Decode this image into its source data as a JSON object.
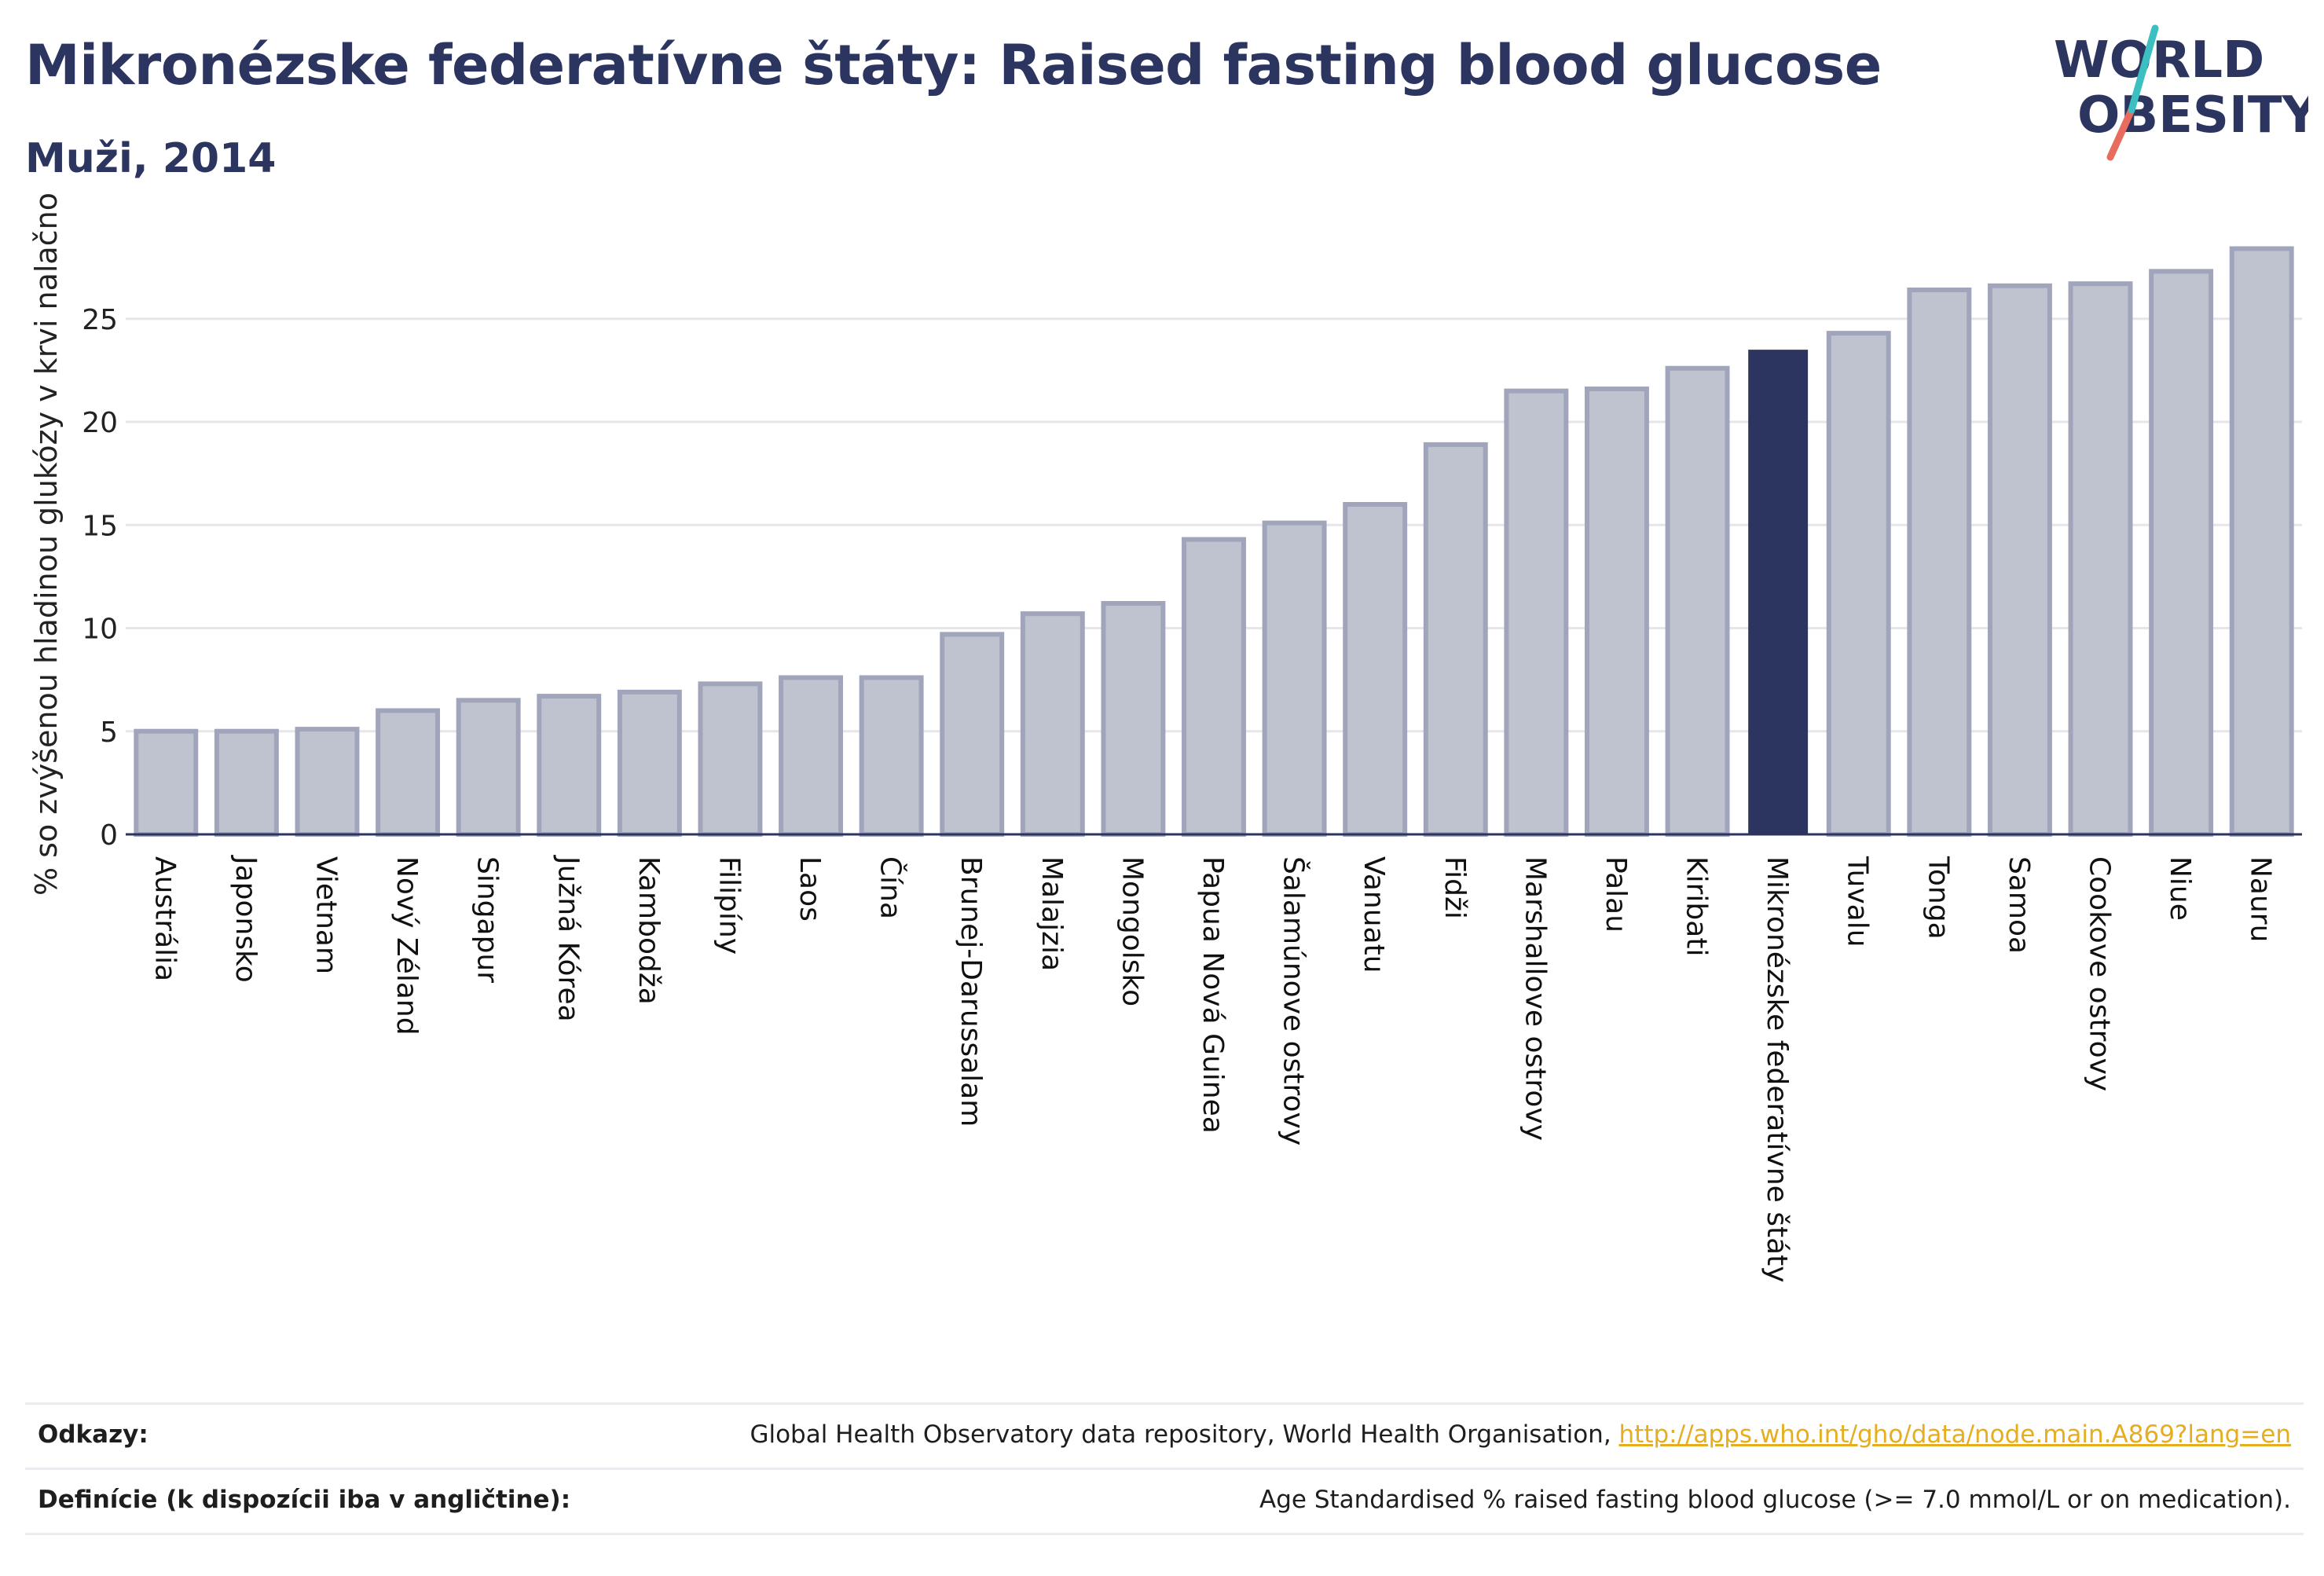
{
  "header": {
    "title": "Mikronézske federatívne štáty: Raised fasting blood glucose",
    "subtitle": "Muži, 2014"
  },
  "logo": {
    "line1": "WORLD",
    "line2": "OBESITY"
  },
  "colors": {
    "bar": "#bfc2cf",
    "bar_stroke": "#a0a5bb",
    "highlight": "#2b3560",
    "grid": "#e6e6ea",
    "title": "#2b3560",
    "link": "#e6ad1e"
  },
  "chart_data": {
    "type": "bar",
    "title": "Mikronézske federatívne štáty: Raised fasting blood glucose",
    "subtitle": "Muži, 2014",
    "xlabel": "",
    "ylabel": "% so zvýšenou hladinou glukózy v krvi nalačno",
    "ylim": [
      0,
      29
    ],
    "yticks": [
      0,
      5,
      10,
      15,
      20,
      25
    ],
    "grid": true,
    "highlight_category": "Mikronézske federatívne štáty",
    "categories": [
      "Austrália",
      "Japonsko",
      "Vietnam",
      "Nový Zéland",
      "Singapur",
      "Južná Kórea",
      "Kambodža",
      "Filipíny",
      "Laos",
      "Čína",
      "Brunej-Darussalam",
      "Malajzia",
      "Mongolsko",
      "Papua Nová Guinea",
      "Šalamúnove ostrovy",
      "Vanuatu",
      "Fidži",
      "Marshallove ostrovy",
      "Palau",
      "Kiribati",
      "Mikronézske federatívne štáty",
      "Tuvalu",
      "Tonga",
      "Samoa",
      "Cookove ostrovy",
      "Niue",
      "Nauru"
    ],
    "values": [
      5.0,
      5.0,
      5.1,
      6.0,
      6.5,
      6.7,
      6.9,
      7.3,
      7.6,
      7.6,
      9.7,
      10.7,
      11.2,
      14.3,
      15.1,
      16.0,
      18.9,
      21.5,
      21.6,
      22.6,
      23.5,
      24.3,
      26.4,
      26.6,
      26.7,
      27.3,
      28.4
    ]
  },
  "footer": {
    "sources_label": "Odkazy:",
    "sources_text": "Global Health Observatory data repository, World Health Organisation, ",
    "sources_link": "http://apps.who.int/gho/data/node.main.A869?lang=en",
    "definitions_label": "Definície (k dispozícii iba v angličtine):",
    "definitions_text": "Age Standardised % raised fasting blood glucose (>= 7.0 mmol/L or on medication)."
  }
}
